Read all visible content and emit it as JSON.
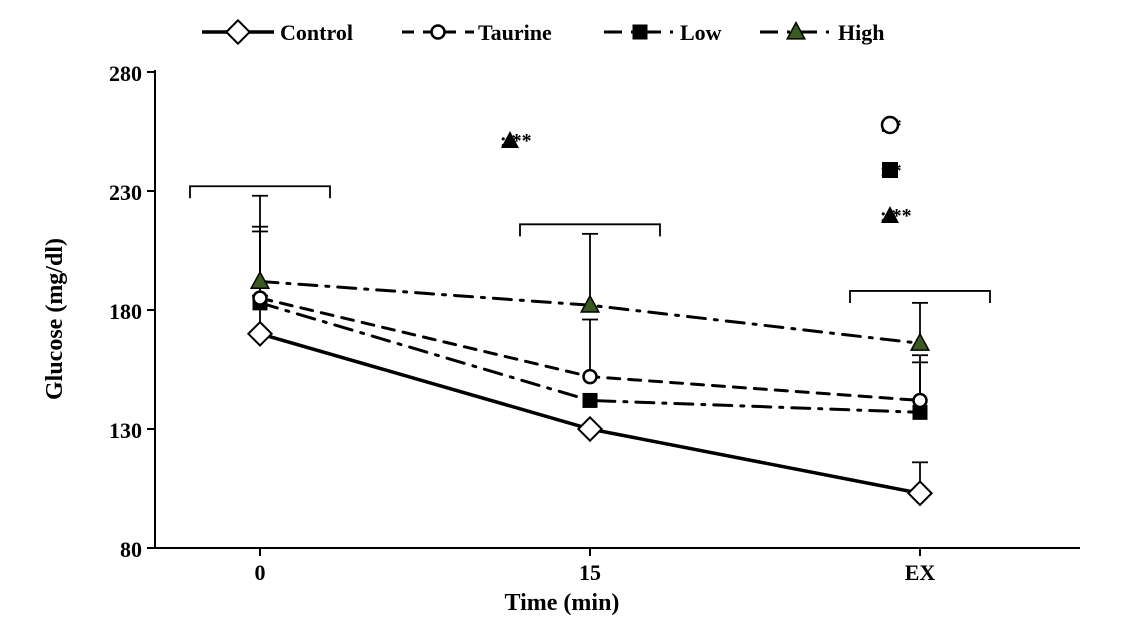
{
  "chart": {
    "type": "line",
    "background_color": "#ffffff",
    "axis_color": "#000000",
    "axis_line_width": 2,
    "tick_len": 8,
    "font_family": "Times New Roman",
    "tick_fontsize": 22,
    "axis_title_fontsize": 24,
    "legend_fontsize": 22,
    "annot_fontsize": 20,
    "ylabel": "Glucose  (mg/dl)",
    "xlabel": "Time (min)",
    "ylim": [
      80,
      280
    ],
    "yticks": [
      80,
      130,
      180,
      230,
      280
    ],
    "x_categories": [
      "0",
      "15",
      "EX"
    ],
    "series": {
      "control": {
        "label": "Control",
        "values": [
          170,
          130,
          103
        ],
        "err": [
          16,
          0,
          13
        ],
        "line_color": "#000000",
        "line_width": 3.5,
        "dash": "solid",
        "marker": {
          "shape": "diamond",
          "size": 14,
          "fill": "#ffffff",
          "stroke": "#000000",
          "stroke_width": 2
        }
      },
      "taurine": {
        "label": "Taurine",
        "values": [
          185,
          152,
          142
        ],
        "err": [
          28,
          24,
          16
        ],
        "line_color": "#000000",
        "line_width": 3,
        "dash": "dashed",
        "marker": {
          "shape": "circle",
          "size": 13,
          "fill": "#ffffff",
          "stroke": "#000000",
          "stroke_width": 2.5
        }
      },
      "low": {
        "label": "Low",
        "values": [
          183,
          142,
          137
        ],
        "err": [
          32,
          0,
          24
        ],
        "line_color": "#000000",
        "line_width": 3,
        "dash": "dashdot",
        "marker": {
          "shape": "square",
          "size": 14,
          "fill": "#000000",
          "stroke": "#000000",
          "stroke_width": 1
        }
      },
      "high": {
        "label": "High",
        "values": [
          192,
          182,
          166
        ],
        "err": [
          36,
          30,
          17
        ],
        "line_color": "#000000",
        "line_width": 3,
        "dash": "dashdot",
        "marker": {
          "shape": "triangle",
          "size": 15,
          "fill": "#3a5b1e",
          "stroke": "#000000",
          "stroke_width": 1.5
        }
      }
    },
    "annotations": {
      "t15_high": {
        "marker": "triangle",
        "text": ": **"
      },
      "ex_circ": {
        "marker": "circle",
        "text": ": *"
      },
      "ex_sq": {
        "marker": "square",
        "text": ": *"
      },
      "ex_tri": {
        "marker": "triangle",
        "text": ": **"
      }
    }
  }
}
